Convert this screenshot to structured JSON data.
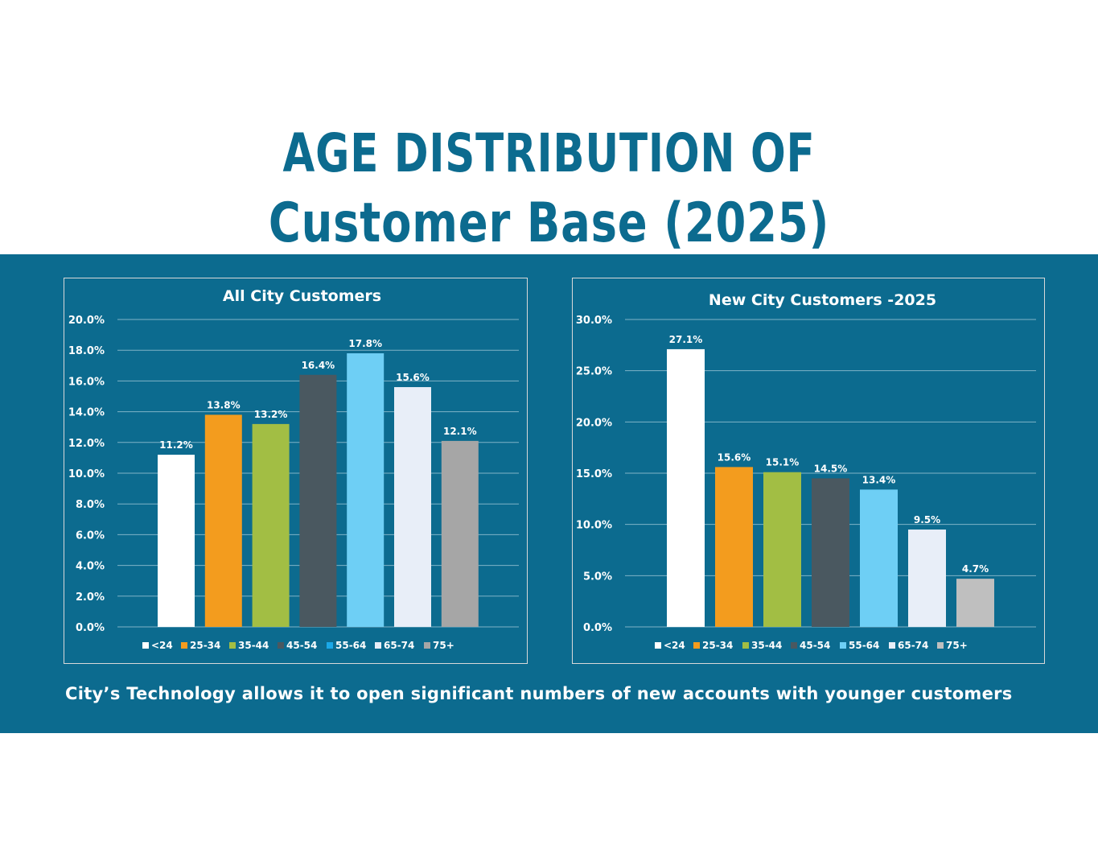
{
  "page": {
    "title_line1": "AGE DISTRIBUTION OF",
    "title_line2": "Customer Base (2025)",
    "footer": "City’s Technology allows it to open significant numbers of new accounts with younger customers"
  },
  "colors": {
    "title": "#0c6b8f",
    "band": "#0c6b8f",
    "text": "#ffffff",
    "gridline": "#7fb3c7"
  },
  "chart_data": [
    {
      "type": "bar",
      "title": "All City Customers",
      "categories": [
        "<24",
        "25-34",
        "35-44",
        "45-54",
        "55-64",
        "65-74",
        "75+"
      ],
      "values": [
        11.2,
        13.8,
        13.2,
        16.4,
        17.8,
        15.6,
        12.1
      ],
      "value_labels": [
        "11.2%",
        "13.8%",
        "13.2%",
        "16.4%",
        "17.8%",
        "15.6%",
        "12.1%"
      ],
      "bar_colors": [
        "#ffffff",
        "#f39c1e",
        "#a2be44",
        "#4a5860",
        "#6ecff5",
        "#e8eef8",
        "#a6a6a6"
      ],
      "legend_colors": [
        "#ffffff",
        "#f39c1e",
        "#a2be44",
        "#4a5860",
        "#1aa8e8",
        "#e8eef8",
        "#a6a6a6"
      ],
      "ylim": [
        0,
        20
      ],
      "ytick_step": 2,
      "ytick_labels": [
        "0.0%",
        "2.0%",
        "4.0%",
        "6.0%",
        "8.0%",
        "10.0%",
        "12.0%",
        "14.0%",
        "16.0%",
        "18.0%",
        "20.0%"
      ],
      "xlabel": "",
      "ylabel": "",
      "grid": true,
      "legend_position": "bottom"
    },
    {
      "type": "bar",
      "title": "New City Customers -2025",
      "categories": [
        "<24",
        "25-34",
        "35-44",
        "45-54",
        "55-64",
        "65-74",
        "75+"
      ],
      "values": [
        27.1,
        15.6,
        15.1,
        14.5,
        13.4,
        9.5,
        4.7
      ],
      "value_labels": [
        "27.1%",
        "15.6%",
        "15.1%",
        "14.5%",
        "13.4%",
        "9.5%",
        "4.7%"
      ],
      "bar_colors": [
        "#ffffff",
        "#f39c1e",
        "#a2be44",
        "#4a5860",
        "#6ecff5",
        "#e8eef8",
        "#bfbfbf"
      ],
      "legend_colors": [
        "#ffffff",
        "#f39c1e",
        "#a2be44",
        "#4a5860",
        "#6ecff5",
        "#e8eef8",
        "#bfbfbf"
      ],
      "ylim": [
        0,
        30
      ],
      "ytick_step": 5,
      "ytick_labels": [
        "0.0%",
        "5.0%",
        "10.0%",
        "15.0%",
        "20.0%",
        "25.0%",
        "30.0%"
      ],
      "xlabel": "",
      "ylabel": "",
      "grid": true,
      "legend_position": "bottom"
    }
  ]
}
